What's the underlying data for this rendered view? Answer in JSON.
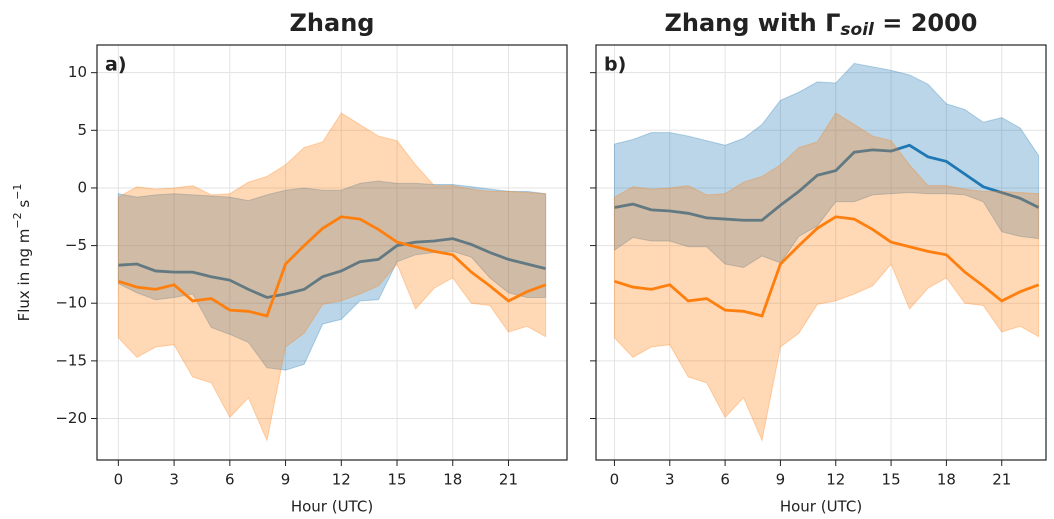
{
  "chart_data": [
    {
      "type": "line",
      "title": "Zhang",
      "panel_label": "a)",
      "y_label": [
        "Flux in ng m",
        "−2",
        " s",
        "−1"
      ],
      "x_label": "Hour (UTC)",
      "x": [
        0,
        1,
        2,
        3,
        4,
        5,
        6,
        7,
        8,
        9,
        10,
        11,
        12,
        13,
        14,
        15,
        16,
        17,
        18,
        19,
        20,
        21,
        22,
        23
      ],
      "xlim": [
        -1.15,
        24.15
      ],
      "xticks": [
        0,
        3,
        6,
        9,
        12,
        15,
        18,
        21
      ],
      "ylim": [
        -23.6,
        12.4
      ],
      "yticks": [
        {
          "value": -20,
          "label": "−20"
        },
        {
          "value": -15,
          "label": "−15"
        },
        {
          "value": -10,
          "label": "−10"
        },
        {
          "value": -5,
          "label": "−5"
        },
        0,
        5,
        10
      ],
      "show_ytick_labels": true,
      "grid": true,
      "series": [
        {
          "color": "#1f77b4",
          "values": [
            -6.7,
            -6.6,
            -7.2,
            -7.3,
            -7.3,
            -7.7,
            -8.0,
            -8.8,
            -9.5,
            -9.2,
            -8.8,
            -7.7,
            -7.2,
            -6.4,
            -6.2,
            -5.0,
            -4.7,
            -4.6,
            -4.4,
            -4.9,
            -5.6,
            -6.2,
            -6.6,
            -7.0
          ],
          "upper": [
            -0.5,
            -0.8,
            -0.6,
            -0.5,
            -0.6,
            -0.7,
            -0.8,
            -1.1,
            -0.6,
            -0.2,
            0,
            -0.2,
            -0.2,
            0.4,
            0.6,
            0.4,
            0.4,
            0.3,
            0.3,
            0.1,
            -0.1,
            -0.3,
            -0.3,
            -0.5
          ],
          "lower": [
            -8.3,
            -9.1,
            -9.7,
            -9.5,
            -9.2,
            -12.1,
            -12.7,
            -13.4,
            -15.6,
            -15.8,
            -15.3,
            -11.8,
            -11.4,
            -9.8,
            -9.7,
            -6.4,
            -5.8,
            -5.6,
            -5.5,
            -6.0,
            -7.8,
            -9.1,
            -9.5,
            -9.5
          ]
        },
        {
          "color": "#ff7f0e",
          "values": [
            -8.1,
            -8.6,
            -8.8,
            -8.4,
            -9.8,
            -9.6,
            -10.6,
            -10.7,
            -11.1,
            -6.6,
            -5.0,
            -3.5,
            -2.5,
            -2.7,
            -3.6,
            -4.7,
            -5.1,
            -5.5,
            -5.8,
            -7.3,
            -8.5,
            -9.8,
            -9.0,
            -8.4
          ],
          "upper": [
            -0.8,
            0.1,
            -0.1,
            0,
            0.2,
            -0.6,
            -0.5,
            0.5,
            1,
            2,
            3.5,
            4,
            6.5,
            5.5,
            4.5,
            4.1,
            2,
            0.2,
            0.2,
            -0.1,
            -0.3,
            -0.3,
            -0.4,
            -0.5
          ],
          "lower": [
            -13,
            -14.7,
            -13.8,
            -13.6,
            -16.4,
            -16.9,
            -19.9,
            -18.2,
            -21.9,
            -13.8,
            -12.6,
            -10.1,
            -9.8,
            -9.2,
            -8.5,
            -6.6,
            -10.5,
            -8.7,
            -7.8,
            -10.0,
            -10.2,
            -12.5,
            -12,
            -12.9
          ]
        }
      ]
    },
    {
      "type": "line",
      "title": [
        "Zhang with Γ",
        "soil",
        " = 2000"
      ],
      "panel_label": "b)",
      "x_label": "Hour (UTC)",
      "x": [
        0,
        1,
        2,
        3,
        4,
        5,
        6,
        7,
        8,
        9,
        10,
        11,
        12,
        13,
        14,
        15,
        16,
        17,
        18,
        19,
        20,
        21,
        22,
        23
      ],
      "xlim": [
        -1.0,
        23.4
      ],
      "xticks": [
        0,
        3,
        6,
        9,
        12,
        15,
        18,
        21
      ],
      "ylim": [
        -23.6,
        12.4
      ],
      "yticks": [
        -20,
        -15,
        -10,
        -5,
        0,
        5,
        10
      ],
      "show_ytick_labels": false,
      "grid": true,
      "series": [
        {
          "color": "#1f77b4",
          "values": [
            -1.7,
            -1.4,
            -1.9,
            -2.0,
            -2.2,
            -2.6,
            -2.7,
            -2.8,
            -2.8,
            -1.5,
            -0.3,
            1.1,
            1.5,
            3.1,
            3.3,
            3.2,
            3.7,
            2.7,
            2.3,
            1.2,
            0.1,
            -0.4,
            -0.9,
            -1.7
          ],
          "upper": [
            3.8,
            4.2,
            4.8,
            4.8,
            4.5,
            4.1,
            3.7,
            4.3,
            5.5,
            7.6,
            8.3,
            9.2,
            9.1,
            10.8,
            10.5,
            10.2,
            9.8,
            9.0,
            7.3,
            6.8,
            5.7,
            6.1,
            5.2,
            2.8
          ],
          "lower": [
            -5.4,
            -4.3,
            -4.6,
            -4.6,
            -5.1,
            -5.1,
            -6.6,
            -6.9,
            -5.9,
            -6.5,
            -4.2,
            -3.3,
            -1.2,
            -1.2,
            -0.6,
            -0.5,
            -0.4,
            -0.5,
            -0.5,
            -0.6,
            -1.2,
            -3.8,
            -4.2,
            -4.4
          ]
        },
        {
          "color": "#ff7f0e",
          "values": [
            -8.1,
            -8.6,
            -8.8,
            -8.4,
            -9.8,
            -9.6,
            -10.6,
            -10.7,
            -11.1,
            -6.6,
            -5.0,
            -3.5,
            -2.5,
            -2.7,
            -3.6,
            -4.7,
            -5.1,
            -5.5,
            -5.8,
            -7.3,
            -8.5,
            -9.8,
            -9.0,
            -8.4
          ],
          "upper": [
            -0.8,
            0.1,
            -0.1,
            0,
            0.2,
            -0.6,
            -0.5,
            0.5,
            1,
            2,
            3.5,
            4,
            6.5,
            5.5,
            4.5,
            4.1,
            2,
            0.2,
            0.2,
            -0.1,
            -0.3,
            -0.3,
            -0.4,
            -0.5
          ],
          "lower": [
            -13,
            -14.7,
            -13.8,
            -13.6,
            -16.4,
            -16.9,
            -19.9,
            -18.2,
            -21.9,
            -13.8,
            -12.6,
            -10.1,
            -9.8,
            -9.2,
            -8.5,
            -6.6,
            -10.5,
            -8.7,
            -7.8,
            -10.0,
            -10.2,
            -12.5,
            -12,
            -12.9
          ]
        }
      ]
    }
  ]
}
